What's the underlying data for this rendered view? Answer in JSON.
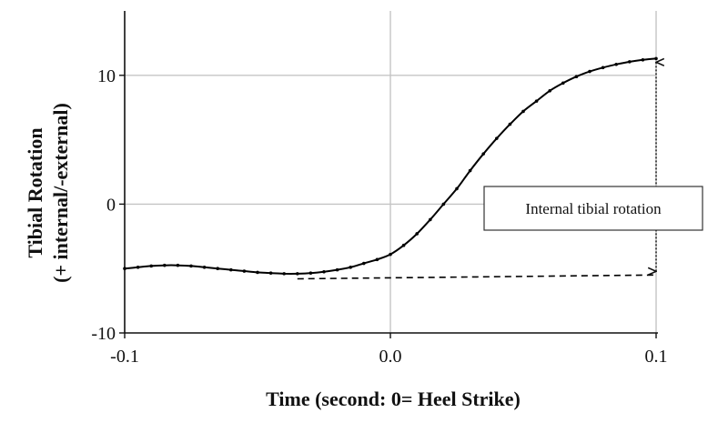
{
  "chart_data": {
    "type": "line",
    "title": "",
    "xlabel": "Time (second: 0= Heel Strike)",
    "ylabel": [
      "Tibial Rotation",
      "(+ internal/-external)"
    ],
    "xlim": [
      -0.1,
      0.1
    ],
    "ylim": [
      -10,
      15
    ],
    "xticks": [
      -0.1,
      0.0,
      0.1
    ],
    "xtick_labels": [
      "-0.1",
      "0.0",
      "0.1"
    ],
    "yticks": [
      -10,
      0,
      10
    ],
    "ytick_labels": [
      "-10",
      "0",
      "10"
    ],
    "grid": true,
    "series": [
      {
        "style": "solid-with-markers",
        "color": "#000000",
        "x": [
          -0.1,
          -0.095,
          -0.09,
          -0.085,
          -0.08,
          -0.075,
          -0.07,
          -0.065,
          -0.06,
          -0.055,
          -0.05,
          -0.045,
          -0.04,
          -0.035,
          -0.03,
          -0.025,
          -0.02,
          -0.015,
          -0.01,
          -0.005,
          0.0,
          0.005,
          0.01,
          0.015,
          0.02,
          0.025,
          0.03,
          0.035,
          0.04,
          0.045,
          0.05,
          0.055,
          0.06,
          0.065,
          0.07,
          0.075,
          0.08,
          0.085,
          0.09,
          0.095,
          0.1
        ],
        "y": [
          -5.0,
          -4.9,
          -4.8,
          -4.75,
          -4.75,
          -4.8,
          -4.9,
          -5.0,
          -5.1,
          -5.2,
          -5.3,
          -5.35,
          -5.4,
          -5.4,
          -5.35,
          -5.25,
          -5.1,
          -4.9,
          -4.6,
          -4.3,
          -3.9,
          -3.2,
          -2.3,
          -1.2,
          0.0,
          1.2,
          2.6,
          3.9,
          5.1,
          6.2,
          7.2,
          8.0,
          8.8,
          9.4,
          9.9,
          10.3,
          10.6,
          10.85,
          11.05,
          11.2,
          11.3
        ]
      },
      {
        "style": "dashed",
        "color": "#000000",
        "x": [
          -0.035,
          0.1
        ],
        "y": [
          -5.8,
          -5.5
        ]
      }
    ],
    "annotations": [
      {
        "text": "Internal tibial rotation",
        "type": "double-arrow",
        "x": 0.1,
        "y_from": -5.5,
        "y_to": 11.3
      }
    ]
  }
}
